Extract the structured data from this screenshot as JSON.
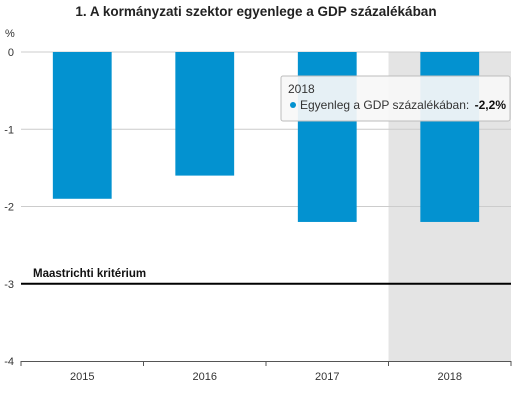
{
  "chart_data": {
    "type": "bar",
    "title": "1. A kormányzati szektor egyenlege a GDP százalékában",
    "unit": "%",
    "categories": [
      "2015",
      "2016",
      "2017",
      "2018"
    ],
    "series": [
      {
        "name": "Egyenleg a GDP százalékában",
        "color": "#0392d0",
        "values": [
          -1.9,
          -1.6,
          -2.2,
          -2.2
        ]
      }
    ],
    "ylim": [
      -4,
      0
    ],
    "yticks": [
      0,
      -1,
      -2,
      -3,
      -4
    ],
    "ytick_labels": [
      "0",
      "-1",
      "-2",
      "-3",
      "-4"
    ],
    "reference_line": {
      "value": -3,
      "label": "Maastrichti kritérium",
      "color": "#000000"
    },
    "highlighted_category": "2018",
    "highlight_color": "#e4e4e4",
    "grid": true,
    "grid_color": "#cccccc",
    "tooltip": {
      "category": "2018",
      "series_label": "Egyenleg a GDP százalékában:",
      "value_label": "-2,2%"
    }
  }
}
